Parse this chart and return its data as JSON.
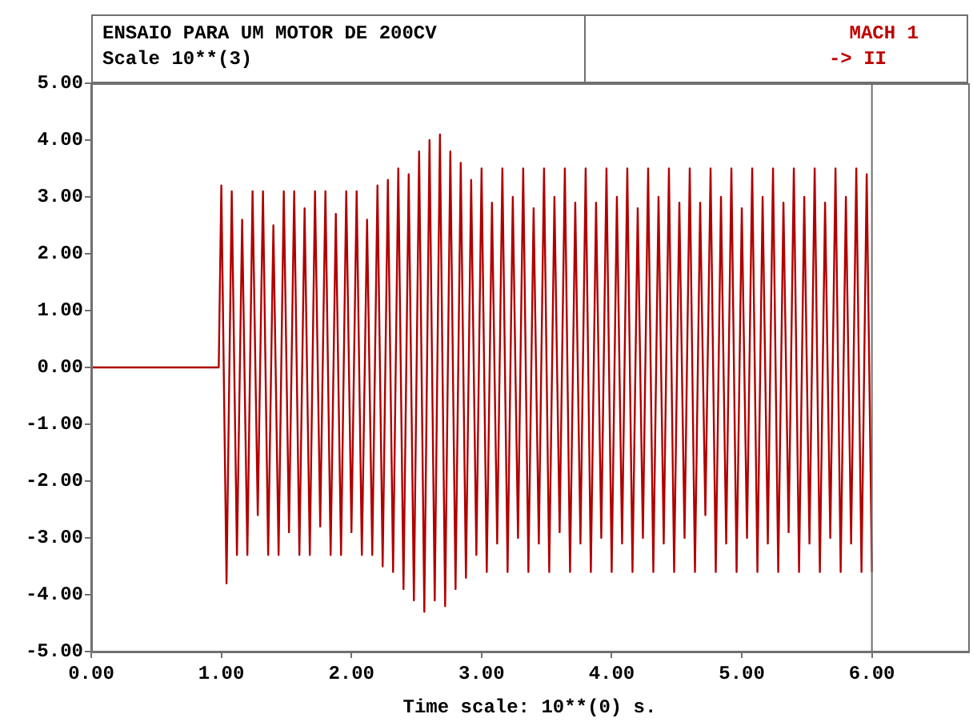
{
  "chart_data": {
    "type": "line",
    "title": "ENSAIO PARA UM MOTOR DE 200CV",
    "subtitle": "Scale 10**(3)",
    "annotations": [
      "MACH 1",
      "-> II"
    ],
    "xlabel": "Time scale: 10**(0) s.",
    "xlim": [
      0,
      6.74
    ],
    "xticks": [
      {
        "value": 0,
        "label": "0.00"
      },
      {
        "value": 1,
        "label": "1.00"
      },
      {
        "value": 2,
        "label": "2.00"
      },
      {
        "value": 3,
        "label": "3.00"
      },
      {
        "value": 4,
        "label": "4.00"
      },
      {
        "value": 5,
        "label": "5.00"
      },
      {
        "value": 6,
        "label": "6.00"
      }
    ],
    "ylim": [
      -5,
      5
    ],
    "yticks": [
      {
        "value": 5,
        "label": "5.00"
      },
      {
        "value": 4,
        "label": "4.00"
      },
      {
        "value": 3,
        "label": "3.00"
      },
      {
        "value": 2,
        "label": "2.00"
      },
      {
        "value": 1,
        "label": "1.00"
      },
      {
        "value": 0,
        "label": "0.00"
      },
      {
        "value": -1,
        "label": "-1.00"
      },
      {
        "value": -2,
        "label": "-2.00"
      },
      {
        "value": -3,
        "label": "-3.00"
      },
      {
        "value": -4,
        "label": "-4.00"
      },
      {
        "value": -5,
        "label": "-5.00"
      }
    ],
    "ref_lines": [
      {
        "axis": "x",
        "value": 6,
        "color": "#707070"
      }
    ],
    "x": [
      0,
      0.98,
      1.0,
      1.04,
      1.08,
      1.12,
      1.16,
      1.2,
      1.24,
      1.28,
      1.32,
      1.36,
      1.4,
      1.44,
      1.48,
      1.52,
      1.56,
      1.6,
      1.64,
      1.68,
      1.72,
      1.76,
      1.8,
      1.84,
      1.88,
      1.92,
      1.96,
      2.0,
      2.04,
      2.08,
      2.12,
      2.16,
      2.2,
      2.24,
      2.28,
      2.32,
      2.36,
      2.4,
      2.44,
      2.48,
      2.52,
      2.56,
      2.6,
      2.64,
      2.68,
      2.72,
      2.76,
      2.8,
      2.84,
      2.88,
      2.92,
      2.96,
      3.0,
      3.04,
      3.08,
      3.12,
      3.16,
      3.2,
      3.24,
      3.28,
      3.32,
      3.36,
      3.4,
      3.44,
      3.48,
      3.52,
      3.56,
      3.6,
      3.64,
      3.68,
      3.72,
      3.76,
      3.8,
      3.84,
      3.88,
      3.92,
      3.96,
      4.0,
      4.04,
      4.08,
      4.12,
      4.16,
      4.2,
      4.24,
      4.28,
      4.32,
      4.36,
      4.4,
      4.44,
      4.48,
      4.52,
      4.56,
      4.6,
      4.64,
      4.68,
      4.72,
      4.76,
      4.8,
      4.84,
      4.88,
      4.92,
      4.96,
      5.0,
      5.04,
      5.08,
      5.12,
      5.16,
      5.2,
      5.24,
      5.28,
      5.32,
      5.36,
      5.4,
      5.44,
      5.48,
      5.52,
      5.56,
      5.6,
      5.64,
      5.68,
      5.72,
      5.76,
      5.8,
      5.84,
      5.88,
      5.92,
      5.96,
      6.0
    ],
    "series": [
      {
        "color": "#b00000",
        "values": [
          0,
          0,
          3.2,
          -3.8,
          3.1,
          -3.3,
          2.6,
          -3.3,
          3.1,
          -2.6,
          3.1,
          -3.3,
          2.5,
          -3.3,
          3.1,
          -2.9,
          3.1,
          -3.3,
          2.8,
          -3.3,
          3.1,
          -2.8,
          3.1,
          -3.3,
          2.7,
          -3.3,
          3.1,
          -2.9,
          3.1,
          -3.3,
          2.6,
          -3.3,
          3.2,
          -3.5,
          3.3,
          -3.6,
          3.5,
          -3.9,
          3.4,
          -4.1,
          3.8,
          -4.3,
          4.0,
          -4.1,
          4.1,
          -4.2,
          3.8,
          -3.9,
          3.6,
          -3.7,
          3.3,
          -3.3,
          3.5,
          -3.6,
          2.9,
          -3.1,
          3.5,
          -3.6,
          3.0,
          -3.0,
          3.5,
          -3.6,
          2.8,
          -3.1,
          3.5,
          -3.6,
          3.0,
          -2.9,
          3.5,
          -3.6,
          2.9,
          -3.1,
          3.5,
          -3.6,
          2.9,
          -3.0,
          3.5,
          -3.6,
          3.0,
          -3.1,
          3.5,
          -3.6,
          2.8,
          -3.0,
          3.5,
          -3.6,
          3.0,
          -3.1,
          3.5,
          -3.6,
          2.9,
          -3.0,
          3.5,
          -3.6,
          2.9,
          -2.6,
          3.5,
          -3.6,
          3.0,
          -3.1,
          3.5,
          -3.6,
          2.8,
          -3.0,
          3.5,
          -3.6,
          3.0,
          -3.1,
          3.5,
          -3.6,
          2.9,
          -2.9,
          3.5,
          -3.6,
          3.0,
          -3.1,
          3.5,
          -3.6,
          2.9,
          -3.0,
          3.5,
          -3.6,
          3.0,
          -3.1,
          3.5,
          -3.6,
          3.4,
          -3.6
        ]
      }
    ]
  }
}
